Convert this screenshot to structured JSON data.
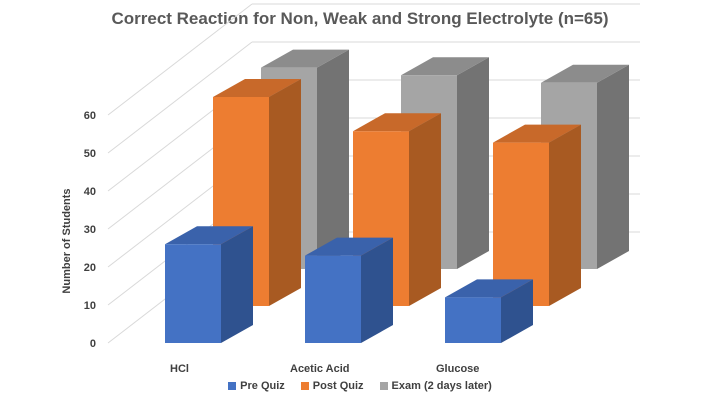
{
  "chart_data": {
    "type": "bar",
    "style": "3d-clustered-depth",
    "title": "Correct Reaction for Non, Weak and Strong Electrolyte (n=65)",
    "xlabel": "",
    "ylabel": "Number of Students",
    "ylim": [
      0,
      70
    ],
    "yticks": [
      0,
      10,
      20,
      30,
      40,
      50,
      60
    ],
    "grid": true,
    "legend_position": "bottom",
    "categories": [
      "HCl",
      "Acetic Acid",
      "Glucose"
    ],
    "series": [
      {
        "name": "Pre Quiz",
        "values": [
          26,
          23,
          12
        ],
        "color": "#4472C4",
        "side_color": "#2F528F",
        "top_color": "#3A62AB"
      },
      {
        "name": "Post Quiz",
        "values": [
          55,
          46,
          43
        ],
        "color": "#ED7D31",
        "side_color": "#A85A22",
        "top_color": "#C8692A"
      },
      {
        "name": "Exam (2 days later)",
        "values": [
          53,
          51,
          49
        ],
        "color": "#A5A5A5",
        "side_color": "#737373",
        "top_color": "#8C8C8C"
      }
    ]
  }
}
